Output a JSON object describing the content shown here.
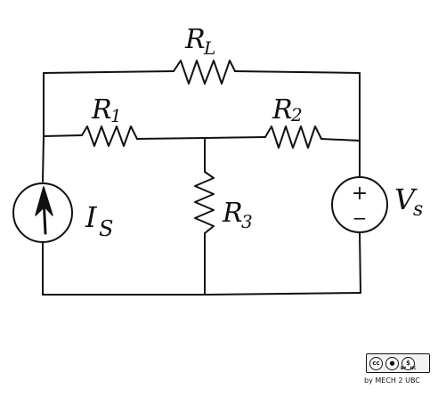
{
  "diagram": {
    "labels": {
      "R_L": {
        "main": "R",
        "sub": "L"
      },
      "R_1": {
        "main": "R",
        "sub": "1"
      },
      "R_2": {
        "main": "R",
        "sub": "2"
      },
      "R_3": {
        "main": "R",
        "sub": "3"
      },
      "I_S": {
        "main": "I",
        "sub": "S"
      },
      "V_S": {
        "main": "V",
        "sub": "s"
      }
    },
    "components": [
      {
        "id": "R_L",
        "kind": "resistor"
      },
      {
        "id": "R_1",
        "kind": "resistor"
      },
      {
        "id": "R_2",
        "kind": "resistor"
      },
      {
        "id": "R_3",
        "kind": "resistor"
      },
      {
        "id": "I_S",
        "kind": "current-source",
        "direction": "up"
      },
      {
        "id": "V_S",
        "kind": "voltage-source",
        "polarity": "plus-top"
      }
    ],
    "source_signs": {
      "plus": "+",
      "minus": "−"
    }
  },
  "license": {
    "badge_icons": [
      "cc-icon",
      "by-icon",
      "nc-icon"
    ],
    "badge_tags": [
      "BY",
      "NC"
    ],
    "credit": "by MECH 2 UBC"
  }
}
